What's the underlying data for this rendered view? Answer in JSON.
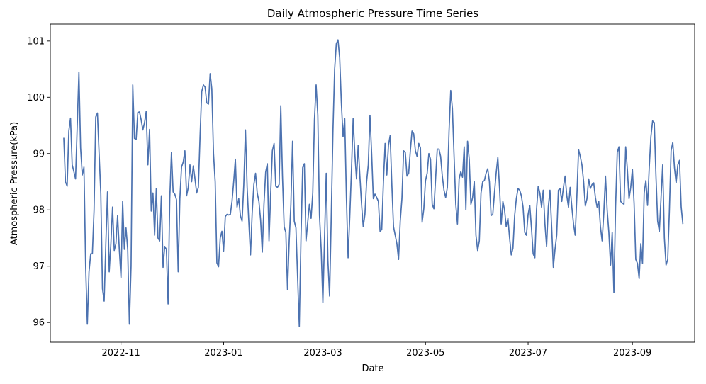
{
  "chart_data": {
    "type": "line",
    "title": "Daily Atmospheric Pressure Time Series",
    "xlabel": "Date",
    "ylabel": "Atmospheric Pressure(kPa)",
    "xlim": [
      "2022-09-20",
      "2023-10-08"
    ],
    "ylim": [
      95.65,
      101.3
    ],
    "x_ticks": [
      "2022-11-01",
      "2023-01-01",
      "2023-03-01",
      "2023-05-01",
      "2023-07-01",
      "2023-09-01"
    ],
    "x_tick_labels": [
      "2022-11",
      "2023-01",
      "2023-03",
      "2023-05",
      "2023-07",
      "2023-09"
    ],
    "y_ticks": [
      96,
      97,
      98,
      99,
      100,
      101
    ],
    "y_tick_labels": [
      "96",
      "97",
      "98",
      "99",
      "100",
      "101"
    ],
    "grid": false,
    "series": [
      {
        "color": "#4c72b0",
        "start_date": "2022-09-28",
        "step_days": 1,
        "values": [
          99.28,
          98.5,
          98.42,
          99.4,
          99.63,
          98.8,
          98.68,
          98.55,
          99.5,
          100.45,
          99.1,
          98.62,
          98.76,
          97.0,
          95.97,
          96.9,
          97.22,
          97.22,
          98.0,
          99.65,
          99.72,
          99.0,
          98.3,
          96.6,
          96.38,
          97.4,
          98.32,
          96.9,
          97.4,
          98.05,
          97.28,
          97.4,
          97.9,
          97.3,
          96.8,
          98.15,
          97.3,
          97.68,
          97.3,
          95.97,
          97.0,
          100.22,
          99.27,
          99.25,
          99.73,
          99.74,
          99.6,
          99.42,
          99.55,
          99.75,
          98.8,
          99.43,
          97.98,
          98.3,
          97.55,
          98.38,
          97.5,
          97.45,
          98.25,
          96.98,
          97.35,
          97.3,
          96.33,
          98.2,
          99.02,
          98.32,
          98.28,
          98.18,
          96.9,
          98.2,
          98.76,
          98.85,
          99.05,
          98.25,
          98.4,
          98.8,
          98.5,
          98.78,
          98.55,
          98.3,
          98.4,
          99.3,
          100.1,
          100.22,
          100.18,
          99.9,
          99.88,
          100.42,
          100.15,
          99.0,
          98.5,
          97.06,
          96.99,
          97.5,
          97.62,
          97.27,
          97.88,
          97.92,
          97.91,
          97.92,
          98.15,
          98.5,
          98.9,
          98.05,
          98.2,
          97.9,
          97.8,
          98.45,
          99.42,
          98.4,
          97.78,
          97.2,
          97.95,
          98.45,
          98.65,
          98.3,
          98.15,
          97.82,
          97.25,
          98.1,
          98.67,
          98.82,
          97.45,
          98.3,
          99.05,
          99.18,
          98.42,
          98.4,
          98.45,
          99.85,
          98.6,
          97.7,
          97.6,
          96.58,
          97.45,
          98.1,
          99.22,
          97.8,
          97.68,
          96.8,
          95.93,
          97.5,
          98.75,
          98.82,
          97.45,
          97.78,
          98.1,
          97.85,
          98.3,
          99.6,
          100.22,
          99.68,
          97.9,
          97.3,
          96.35,
          97.5,
          98.65,
          97.1,
          96.47,
          97.9,
          99.4,
          100.5,
          100.95,
          101.02,
          100.7,
          99.9,
          99.3,
          99.62,
          98.22,
          97.15,
          97.88,
          98.7,
          99.62,
          99.0,
          98.55,
          99.15,
          98.6,
          98.1,
          97.7,
          97.92,
          98.5,
          98.8,
          99.68,
          99.0,
          98.2,
          98.28,
          98.22,
          98.15,
          97.62,
          97.65,
          98.5,
          99.18,
          98.62,
          99.15,
          99.32,
          98.45,
          97.7,
          97.55,
          97.4,
          97.12,
          97.8,
          98.2,
          99.05,
          99.02,
          98.6,
          98.65,
          99.05,
          99.4,
          99.35,
          99.05,
          98.95,
          99.18,
          99.1,
          97.78,
          98.02,
          98.52,
          98.65,
          99.0,
          98.9,
          98.1,
          98.02,
          98.55,
          99.08,
          99.08,
          98.95,
          98.6,
          98.35,
          98.22,
          98.4,
          99.4,
          100.12,
          99.8,
          98.95,
          98.1,
          97.75,
          98.55,
          98.68,
          98.58,
          99.12,
          98.0,
          99.22,
          98.9,
          98.1,
          98.22,
          98.5,
          97.55,
          97.28,
          97.45,
          98.3,
          98.5,
          98.52,
          98.65,
          98.73,
          98.5,
          97.9,
          97.92,
          98.3,
          98.65,
          98.93,
          98.4,
          97.75,
          98.15,
          98.0,
          97.7,
          97.85,
          97.5,
          97.2,
          97.32,
          97.9,
          98.2,
          98.38,
          98.35,
          98.25,
          98.05,
          97.6,
          97.55,
          97.92,
          98.08,
          97.68,
          97.22,
          97.15,
          98.0,
          98.42,
          98.3,
          98.05,
          98.35,
          97.75,
          97.35,
          98.05,
          98.35,
          97.7,
          96.98,
          97.3,
          97.55,
          98.35,
          98.38,
          98.15,
          98.4,
          98.6,
          98.25,
          98.05,
          98.4,
          98.05,
          97.75,
          97.55,
          98.25,
          99.07,
          98.95,
          98.8,
          98.5,
          98.07,
          98.2,
          98.55,
          98.38,
          98.45,
          98.48,
          98.22,
          98.05,
          98.15,
          97.7,
          97.45,
          97.95,
          98.6,
          98.0,
          97.6,
          97.02,
          97.6,
          96.53,
          98.05,
          99.02,
          99.12,
          98.15,
          98.12,
          98.1,
          99.12,
          98.72,
          98.2,
          98.4,
          98.72,
          98.12,
          97.12,
          97.05,
          96.78,
          97.4,
          97.05,
          98.3,
          98.52,
          98.08,
          98.75,
          99.3,
          99.58,
          99.55,
          98.6,
          97.8,
          97.62,
          98.2,
          98.8,
          97.5,
          97.02,
          97.12,
          98.0,
          99.05,
          99.2,
          98.75,
          98.48,
          98.8,
          98.88,
          98.05,
          97.75
        ]
      }
    ]
  }
}
